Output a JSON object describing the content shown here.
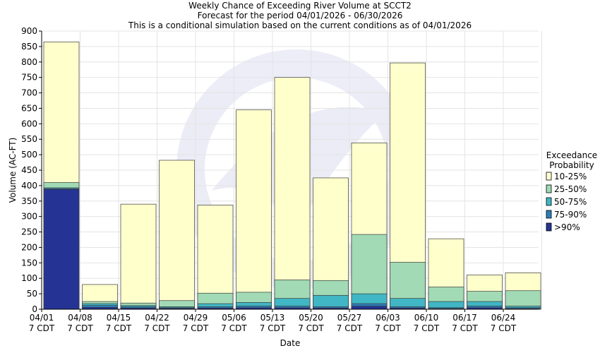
{
  "chart_data": {
    "type": "bar",
    "stacked": "overlay",
    "title": "Weekly Chance of Exceeding River Volume at SCCT2",
    "subtitle_1": "Forecast for the period 04/01/2026 - 06/30/2026",
    "subtitle_2": "This is a conditional simulation based on the current conditions as of 04/01/2026",
    "xlabel": "Date",
    "ylabel": "Volume (AC-FT)",
    "ylim": [
      0,
      900
    ],
    "ytick_step": 50,
    "grid": true,
    "legend_placement": "right",
    "legend_title_1": "Exceedance",
    "legend_title_2": "Probability",
    "x_tick_dates": [
      "04/01",
      "04/08",
      "04/15",
      "04/22",
      "04/29",
      "05/06",
      "05/13",
      "05/20",
      "05/27",
      "06/03",
      "06/10",
      "06/17",
      "06/24"
    ],
    "x_tick_tz": "7 CDT",
    "series": [
      {
        "name": "10-25%",
        "color": "#ffffcc",
        "values": [
          865,
          80,
          340,
          482,
          337,
          645,
          750,
          425,
          538,
          797,
          228,
          111,
          118
        ]
      },
      {
        "name": "25-50%",
        "color": "#a1dab4",
        "values": [
          410,
          25,
          20,
          28,
          52,
          55,
          95,
          93,
          242,
          152,
          72,
          58,
          60
        ]
      },
      {
        "name": "50-75%",
        "color": "#41b6c4",
        "values": [
          393,
          18,
          12,
          8,
          18,
          22,
          35,
          45,
          50,
          35,
          25,
          25,
          10
        ]
      },
      {
        "name": "75-90%",
        "color": "#2c7fb8",
        "values": [
          390,
          12,
          8,
          5,
          8,
          10,
          10,
          8,
          18,
          8,
          5,
          10,
          5
        ]
      },
      {
        "name": ">90%",
        "color": "#253494",
        "values": [
          388,
          6,
          4,
          3,
          4,
          5,
          5,
          4,
          10,
          4,
          2,
          5,
          2
        ]
      }
    ]
  }
}
